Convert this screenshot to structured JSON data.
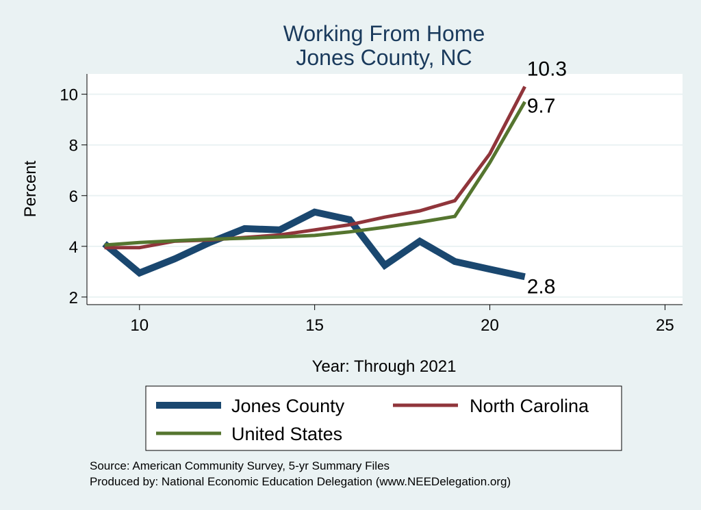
{
  "chart_data": {
    "type": "line",
    "title": [
      "Working From Home",
      "Jones County, NC"
    ],
    "xlabel": "Year: Through 2021",
    "ylabel": "Percent",
    "xlim": [
      8.5,
      25.5
    ],
    "ylim": [
      1.7,
      10.8
    ],
    "xticks": [
      10,
      15,
      20,
      25
    ],
    "yticks": [
      2,
      4,
      6,
      8,
      10
    ],
    "grid": true,
    "x": [
      9,
      10,
      11,
      12,
      13,
      14,
      15,
      16,
      17,
      18,
      19,
      20,
      21
    ],
    "series": [
      {
        "name": "Jones County",
        "color": "#1a476f",
        "values": [
          4.1,
          2.95,
          3.5,
          4.15,
          4.7,
          4.65,
          5.35,
          5.05,
          3.25,
          4.2,
          3.4,
          3.1,
          2.8
        ],
        "end_label": "2.8"
      },
      {
        "name": "North Carolina",
        "color": "#90353b",
        "values": [
          3.95,
          3.95,
          4.2,
          4.25,
          4.35,
          4.45,
          4.65,
          4.85,
          5.15,
          5.4,
          5.8,
          7.65,
          10.3
        ],
        "end_label": "10.3"
      },
      {
        "name": "United States",
        "color": "#55752f",
        "values": [
          4.05,
          4.15,
          4.22,
          4.28,
          4.32,
          4.37,
          4.43,
          4.57,
          4.75,
          4.95,
          5.18,
          7.3,
          9.7
        ],
        "end_label": "9.7"
      }
    ],
    "legend": "bottom",
    "source": [
      "Source: American Community Survey, 5-yr Summary Files",
      "Produced by: National Economic Education Delegation (www.NEEDelegation.org)"
    ]
  }
}
